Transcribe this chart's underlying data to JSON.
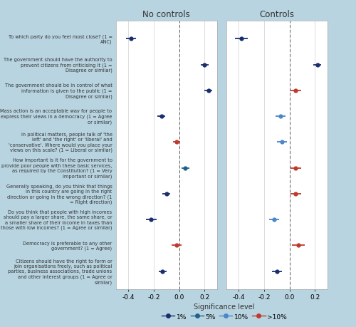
{
  "labels": [
    "To which party do you feel most close? (1 =\nANC)",
    "The government should have the authority to\nprevent citizens from criticising it (1 =\nDisagree or similar)",
    "The government should be in control of what\ninformation is given to the public (1 =\nDisagree or similar)",
    "Mass action is an acceptable way for people to\nexpress their views in a democracy (1 = Agree\nor similar)",
    "In political matters, people talk of 'the\nleft' and 'the right' or 'liberal' and\n'conservative'. Where would you place your\nviews on this scale? (1 = Liberal or similar)",
    "How important is it for the government to\nprovide poor people with these basic services,\nas required by the Constitution? (1 = Very\nimportant or similar)",
    "Generally speaking, do you think that things\nin this country are going in the right\ndirection or going in the wrong direction? (1\n= Right direction)",
    "Do you think that people with high incomes\nshould pay a larger share, the same share, or\na smaller share of their income in taxes than\nthose with low incomes? (1 = Agree or similar)",
    "Democracy is preferable to any other\ngovernment? (1 = Agree)",
    "Citizens should have the right to form or\njoin organisations freely, such as political\nparties, business associations, trade unions\nand other interest groups (1 = Agree or\nsimilar)"
  ],
  "no_controls": {
    "estimates": [
      -0.38,
      0.2,
      0.23,
      -0.14,
      -0.02,
      0.05,
      -0.1,
      -0.22,
      -0.02,
      -0.13
    ],
    "ci_low": [
      -0.42,
      0.17,
      0.2,
      -0.17,
      -0.05,
      0.02,
      -0.13,
      -0.26,
      -0.06,
      -0.16
    ],
    "ci_high": [
      -0.34,
      0.23,
      0.26,
      -0.11,
      0.01,
      0.08,
      -0.07,
      -0.18,
      0.02,
      -0.1
    ],
    "colors": [
      "#1a2e6e",
      "#1a2e6e",
      "#1a2e6e",
      "#1a2e6e",
      "#c0392b",
      "#1f618d",
      "#1a2e6e",
      "#1a2e6e",
      "#c0392b",
      "#1a2e6e"
    ],
    "sig": [
      "1%",
      "1%",
      "1%",
      "1%",
      ">10%",
      "5%",
      "1%",
      "1%",
      ">10%",
      "1%"
    ]
  },
  "controls": {
    "estimates": [
      -0.38,
      0.22,
      0.05,
      -0.07,
      -0.06,
      0.05,
      0.05,
      -0.12,
      0.07,
      -0.1
    ],
    "ci_low": [
      -0.43,
      0.19,
      0.01,
      -0.11,
      -0.1,
      0.01,
      0.01,
      -0.16,
      0.02,
      -0.14
    ],
    "ci_high": [
      -0.33,
      0.25,
      0.09,
      -0.03,
      -0.02,
      0.09,
      0.09,
      -0.08,
      0.12,
      -0.06
    ],
    "colors": [
      "#1a2e6e",
      "#1a2e6e",
      "#c0392b",
      "#4a86c8",
      "#4a86c8",
      "#c0392b",
      "#c0392b",
      "#4a86c8",
      "#c0392b",
      "#1a2e6e"
    ],
    "sig": [
      "1%",
      "1%",
      ">10%",
      "10%",
      "10%",
      ">10%",
      ">10%",
      "10%",
      ">10%",
      "1%"
    ]
  },
  "xlim": [
    -0.5,
    0.3
  ],
  "xticks": [
    -0.4,
    -0.2,
    0.0,
    0.2
  ],
  "xtick_labels": [
    "-0.4",
    "-0.2",
    "0.0",
    "0.2"
  ],
  "background_color": "#b8d4e0",
  "panel_background": "#ffffff",
  "title_no_controls": "No controls",
  "title_controls": "Controls",
  "sig_colors_ordered": [
    [
      "1%",
      "#1a2e6e"
    ],
    [
      "5%",
      "#1f618d"
    ],
    [
      "10%",
      "#4a86c8"
    ],
    [
      ">10%",
      "#c0392b"
    ]
  ]
}
